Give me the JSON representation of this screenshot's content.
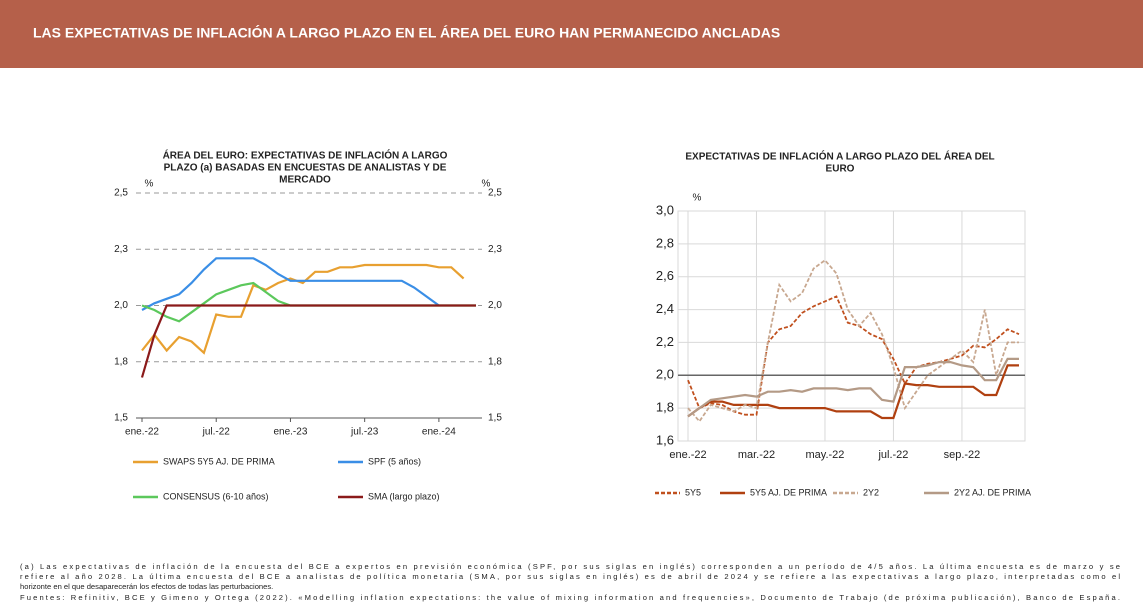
{
  "header": {
    "title": "LAS EXPECTATIVAS DE INFLACIÓN A LARGO PLAZO EN EL ÁREA DEL EURO HAN PERMANECIDO ANCLADAS"
  },
  "chart_data": [
    {
      "type": "line",
      "title": [
        "ÁREA DEL EURO: EXPECTATIVAS DE INFLACIÓN A LARGO",
        "PLAZO (a) BASADAS EN ENCUESTAS DE ANALISTAS Y DE",
        "MERCADO"
      ],
      "y_unit": "%",
      "y2_unit": "%",
      "categories": [
        "ene.-22",
        null,
        null,
        null,
        null,
        null,
        "jul.-22",
        null,
        null,
        null,
        null,
        null,
        "ene.-23",
        null,
        null,
        null,
        null,
        null,
        "jul.-23",
        null,
        null,
        null,
        null,
        null,
        "ene.-24",
        null,
        null,
        null
      ],
      "ylim": [
        1.5,
        2.5
      ],
      "yticks": [
        {
          "value": 1.5,
          "label": "1,5"
        },
        {
          "value": 1.75,
          "label": "1,8"
        },
        {
          "value": 2.0,
          "label": "2,0"
        },
        {
          "value": 2.25,
          "label": "2,3"
        },
        {
          "value": 2.5,
          "label": "2,5"
        }
      ],
      "y2lim": [
        1.5,
        2.5
      ],
      "y2ticks": [
        {
          "value": 1.5,
          "label": "1,5"
        },
        {
          "value": 1.75,
          "label": "1,8"
        },
        {
          "value": 2.0,
          "label": "2,0"
        },
        {
          "value": 2.25,
          "label": "2,3"
        },
        {
          "value": 2.5,
          "label": "2,5"
        }
      ],
      "grid": "dashed",
      "series": [
        {
          "name": "SWAPS 5Y5 AJ. DE PRIMA",
          "color": "#e8a030",
          "values": [
            1.8,
            1.87,
            1.8,
            1.86,
            1.84,
            1.79,
            1.96,
            1.95,
            1.95,
            2.09,
            2.07,
            2.1,
            2.12,
            2.1,
            2.15,
            2.15,
            2.17,
            2.17,
            2.18,
            2.18,
            2.18,
            2.18,
            2.18,
            2.18,
            2.17,
            2.17,
            2.12,
            null
          ]
        },
        {
          "name": "SPF (5 años)",
          "color": "#3a8ee6",
          "values": [
            1.98,
            2.01,
            2.03,
            2.05,
            2.1,
            2.16,
            2.21,
            2.21,
            2.21,
            2.21,
            2.18,
            2.14,
            2.11,
            2.11,
            2.11,
            2.11,
            2.11,
            2.11,
            2.11,
            2.11,
            2.11,
            2.11,
            2.08,
            2.04,
            2.0,
            null,
            null,
            null
          ]
        },
        {
          "name": "CONSENSUS (6-10 años)",
          "color": "#5cc85c",
          "values": [
            2.0,
            1.98,
            1.95,
            1.93,
            1.97,
            2.01,
            2.05,
            2.07,
            2.09,
            2.1,
            2.06,
            2.02,
            2.0,
            2.0,
            2.0,
            2.0,
            2.0,
            2.0,
            2.0,
            2.0,
            2.0,
            2.0,
            2.0,
            2.0,
            2.0,
            2.0,
            2.0,
            2.0
          ]
        },
        {
          "name": "SMA (largo plazo)",
          "color": "#8b1a1a",
          "values": [
            1.68,
            1.87,
            2.0,
            2.0,
            2.0,
            2.0,
            2.0,
            2.0,
            2.0,
            2.0,
            2.0,
            2.0,
            2.0,
            2.0,
            2.0,
            2.0,
            2.0,
            2.0,
            2.0,
            2.0,
            2.0,
            2.0,
            2.0,
            2.0,
            2.0,
            2.0,
            2.0,
            2.0
          ]
        }
      ]
    },
    {
      "type": "line",
      "title": [
        "EXPECTATIVAS DE INFLACIÓN A LARGO PLAZO DEL ÁREA DEL",
        "EURO"
      ],
      "y_unit": "%",
      "categories": [
        "ene.-22",
        null,
        null,
        null,
        null,
        null,
        "mar.-22",
        null,
        null,
        null,
        null,
        null,
        "may.-22",
        null,
        null,
        null,
        null,
        null,
        "jul.-22",
        null,
        null,
        null,
        null,
        null,
        "sep.-22",
        null,
        null,
        null,
        null,
        null
      ],
      "ylim": [
        1.6,
        3.0
      ],
      "yticks": [
        {
          "value": 1.6,
          "label": "1,6"
        },
        {
          "value": 1.8,
          "label": "1,8"
        },
        {
          "value": 2.0,
          "label": "2,0"
        },
        {
          "value": 2.2,
          "label": "2,2"
        },
        {
          "value": 2.4,
          "label": "2,4"
        },
        {
          "value": 2.6,
          "label": "2,6"
        },
        {
          "value": 2.8,
          "label": "2,8"
        },
        {
          "value": 3.0,
          "label": "3,0"
        }
      ],
      "grid": "both",
      "reference_line": 2.0,
      "series": [
        {
          "name": "5Y5",
          "color": "#c0501e",
          "dash": true,
          "values": [
            1.97,
            1.8,
            1.83,
            1.82,
            1.78,
            1.76,
            1.76,
            2.2,
            2.28,
            2.3,
            2.38,
            2.42,
            2.45,
            2.48,
            2.32,
            2.3,
            2.25,
            2.22,
            2.1,
            1.95,
            2.05,
            2.07,
            2.08,
            2.1,
            2.12,
            2.18,
            2.17,
            2.22,
            2.28,
            2.25
          ]
        },
        {
          "name": "5Y5 AJ. DE PRIMA",
          "color": "#b04010",
          "dash": false,
          "values": [
            1.75,
            1.8,
            1.84,
            1.84,
            1.82,
            1.82,
            1.82,
            1.82,
            1.8,
            1.8,
            1.8,
            1.8,
            1.8,
            1.78,
            1.78,
            1.78,
            1.78,
            1.74,
            1.74,
            1.95,
            1.94,
            1.94,
            1.93,
            1.93,
            1.93,
            1.93,
            1.88,
            1.88,
            2.06,
            2.06
          ]
        },
        {
          "name": "2Y2",
          "color": "#c8a890",
          "dash": true,
          "values": [
            1.8,
            1.72,
            1.82,
            1.8,
            1.78,
            1.82,
            1.8,
            2.2,
            2.55,
            2.45,
            2.5,
            2.65,
            2.7,
            2.62,
            2.4,
            2.3,
            2.38,
            2.25,
            2.05,
            1.8,
            1.9,
            2.0,
            2.05,
            2.1,
            2.15,
            2.08,
            2.4,
            2.0,
            2.2,
            2.2
          ]
        },
        {
          "name": "2Y2 AJ. DE PRIMA",
          "color": "#b49a86",
          "dash": false,
          "values": [
            1.75,
            1.8,
            1.85,
            1.86,
            1.87,
            1.88,
            1.87,
            1.9,
            1.9,
            1.91,
            1.9,
            1.92,
            1.92,
            1.92,
            1.91,
            1.92,
            1.92,
            1.85,
            1.84,
            2.05,
            2.05,
            2.06,
            2.08,
            2.08,
            2.06,
            2.05,
            1.97,
            1.97,
            2.1,
            2.1
          ]
        }
      ]
    }
  ],
  "notes": [
    "(a) Las expectativas de inflación de la encuesta del BCE a expertos en previsión económica (SPF, por sus siglas en inglés) corresponden a un período de 4/5 años. La última encuesta es de marzo y se",
    "refiere al año 2028. La última encuesta del BCE a analistas de política monetaria (SMA, por sus siglas en inglés) es de abril de 2024 y se refiere a las expectativas a largo plazo, interpretadas como el",
    "horizonte en el que desaparecerán los efectos de todas las perturbaciones.",
    "Fuentes: Refinitiv, BCE y Gimeno y Ortega (2022). «Modelling inflation expectations: the value of mixing information and frequencies», Documento de Trabajo (de próxima publicación), Banco de España."
  ]
}
